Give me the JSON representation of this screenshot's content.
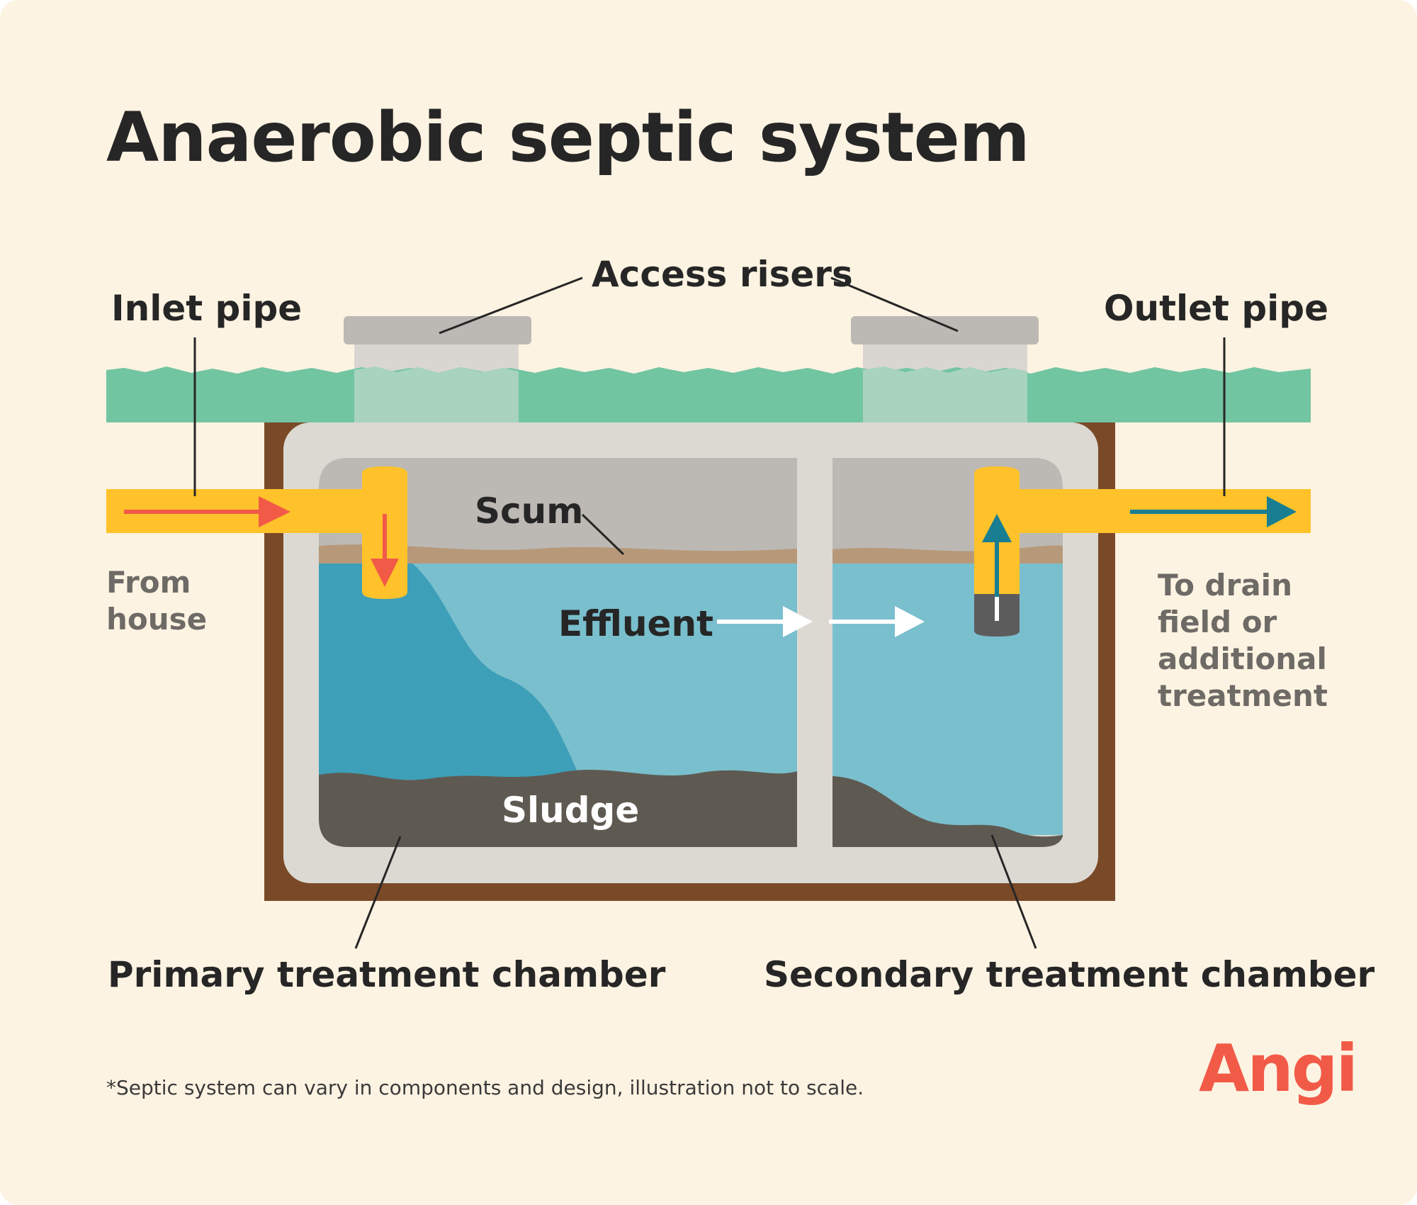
{
  "title": "Anaerobic septic system",
  "labels": {
    "access_risers": "Access risers",
    "inlet_pipe": "Inlet pipe",
    "outlet_pipe": "Outlet pipe",
    "from_house": "From\nhouse",
    "to_drain": "To drain\nfield or\nadditional\ntreatment",
    "scum": "Scum",
    "effluent": "Effluent",
    "sludge": "Sludge",
    "primary_chamber": "Primary treatment chamber",
    "secondary_chamber": "Secondary treatment chamber"
  },
  "footnote": "*Septic system can vary in components and design, illustration not to scale.",
  "logo": "Angi",
  "colors": {
    "background": "#fdf3e2",
    "grass": "#72c5a1",
    "soil": "#7a4a28",
    "tank": "#dcd9d3",
    "scum_layer": "#bcb9b4",
    "scum_line": "#b7997a",
    "effluent": "#7abfcd",
    "incoming_water": "#3e9fb9",
    "sludge": "#5e5a51",
    "pipe": "#ffc22a",
    "inlet_arrow": "#f25a48",
    "outlet_arrow": "#1a7e92",
    "brand": "#f25a48"
  }
}
